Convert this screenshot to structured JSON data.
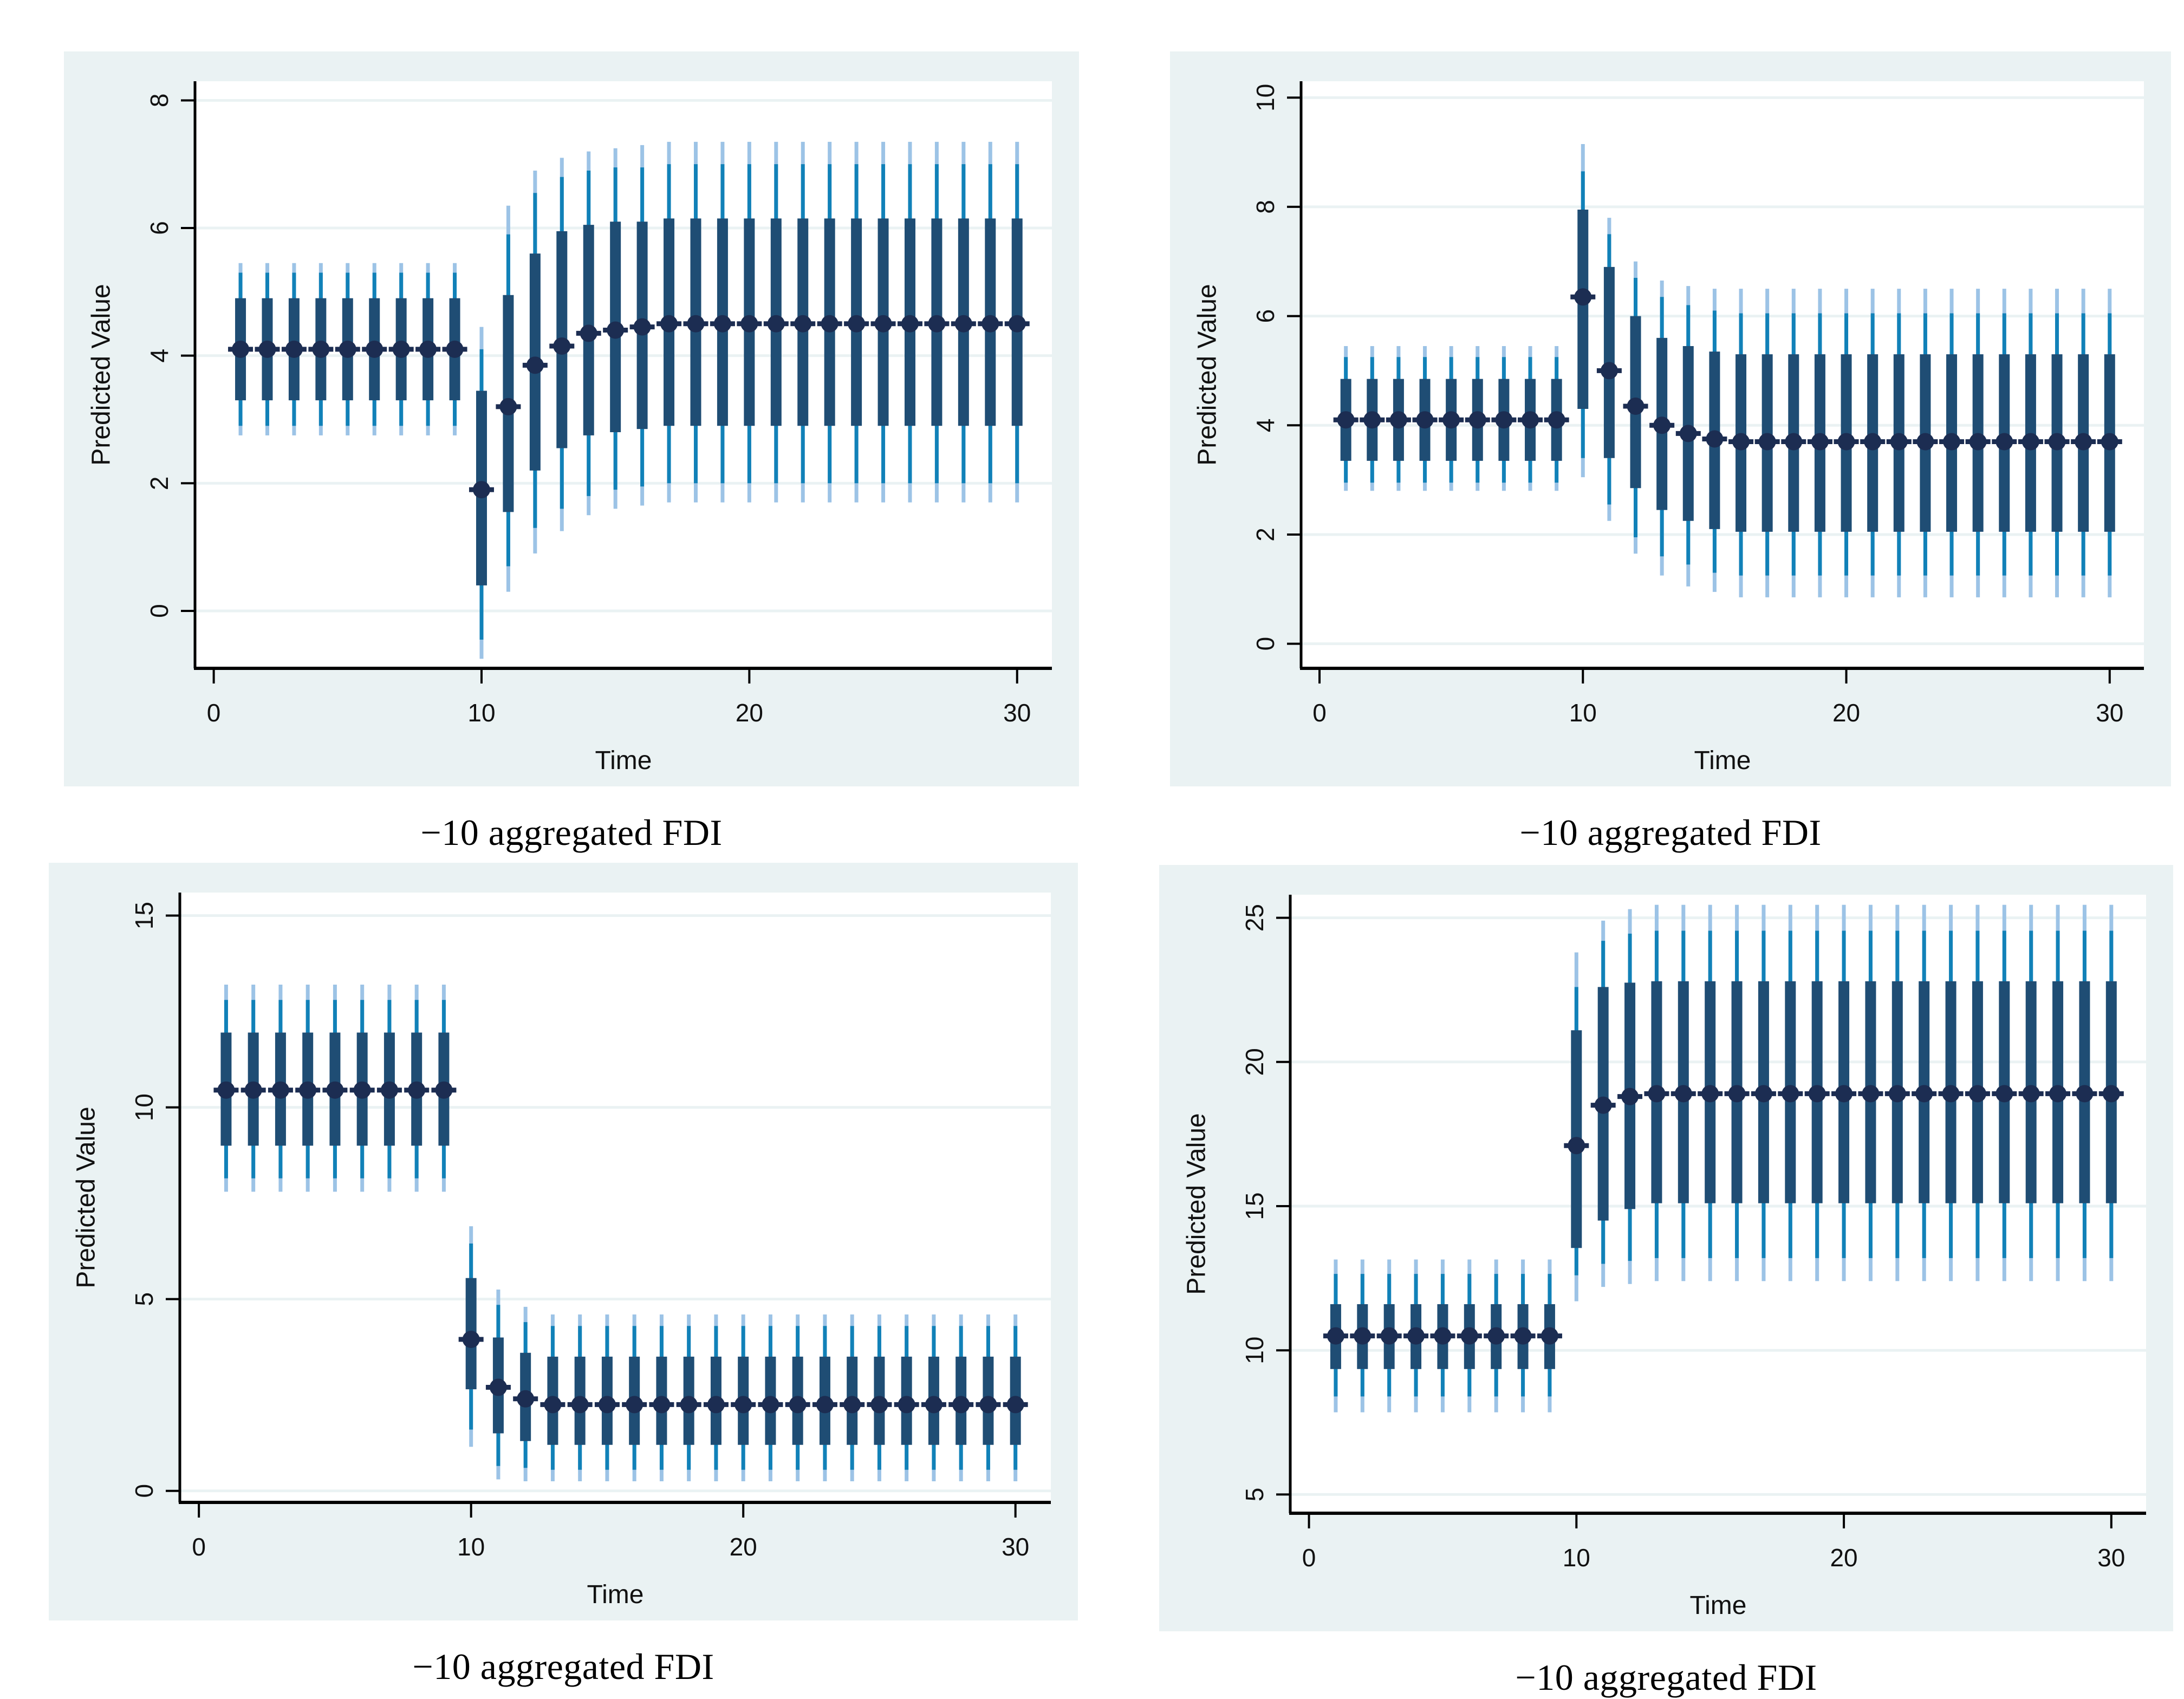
{
  "page": {
    "background": "#ffffff"
  },
  "colors": {
    "panel_background": "#eaf2f3",
    "plot_background": "#ffffff",
    "gridline": "#eaf2f3",
    "axis": "#000000",
    "tick_text": "#111111",
    "outer_ci": "#9cc3e6",
    "mid_ci": "#1181b8",
    "inner_ci": "#1f4d74",
    "point_marker": "#1c2d52",
    "caption_text": "#000000"
  },
  "chart_data": [
    {
      "id": "top-left",
      "type": "scatter",
      "subtype": "point-estimates-with-3-nested-confidence-intervals",
      "caption": "−10 aggregated FDI",
      "xlabel": "Time",
      "ylabel": "Predicted Value",
      "xticks": [
        0,
        10,
        20,
        30
      ],
      "yticks": [
        0,
        2,
        4,
        6,
        8
      ],
      "xlim": [
        -0.7,
        31.3
      ],
      "ylim": [
        -0.9,
        8.3
      ],
      "grid": "horizontal",
      "legend": "none",
      "x": [
        1,
        2,
        3,
        4,
        5,
        6,
        7,
        8,
        9,
        10,
        11,
        12,
        13,
        14,
        15,
        16,
        17,
        18,
        19,
        20,
        21,
        22,
        23,
        24,
        25,
        26,
        27,
        28,
        29,
        30
      ],
      "point": [
        4.1,
        4.1,
        4.1,
        4.1,
        4.1,
        4.1,
        4.1,
        4.1,
        4.1,
        1.9,
        3.2,
        3.85,
        4.15,
        4.35,
        4.4,
        4.45,
        4.5,
        4.5,
        4.5,
        4.5,
        4.5,
        4.5,
        4.5,
        4.5,
        4.5,
        4.5,
        4.5,
        4.5,
        4.5,
        4.5
      ],
      "inner_lo": [
        3.3,
        3.3,
        3.3,
        3.3,
        3.3,
        3.3,
        3.3,
        3.3,
        3.3,
        0.4,
        1.55,
        2.2,
        2.55,
        2.75,
        2.8,
        2.85,
        2.9,
        2.9,
        2.9,
        2.9,
        2.9,
        2.9,
        2.9,
        2.9,
        2.9,
        2.9,
        2.9,
        2.9,
        2.9,
        2.9
      ],
      "inner_hi": [
        4.9,
        4.9,
        4.9,
        4.9,
        4.9,
        4.9,
        4.9,
        4.9,
        4.9,
        3.45,
        4.95,
        5.6,
        5.95,
        6.05,
        6.1,
        6.1,
        6.15,
        6.15,
        6.15,
        6.15,
        6.15,
        6.15,
        6.15,
        6.15,
        6.15,
        6.15,
        6.15,
        6.15,
        6.15,
        6.15
      ],
      "mid_lo": [
        2.9,
        2.9,
        2.9,
        2.9,
        2.9,
        2.9,
        2.9,
        2.9,
        2.9,
        -0.45,
        0.7,
        1.3,
        1.6,
        1.8,
        1.9,
        1.95,
        2.0,
        2.0,
        2.0,
        2.0,
        2.0,
        2.0,
        2.0,
        2.0,
        2.0,
        2.0,
        2.0,
        2.0,
        2.0,
        2.0
      ],
      "mid_hi": [
        5.3,
        5.3,
        5.3,
        5.3,
        5.3,
        5.3,
        5.3,
        5.3,
        5.3,
        4.1,
        5.9,
        6.55,
        6.8,
        6.9,
        6.95,
        6.95,
        7.0,
        7.0,
        7.0,
        7.0,
        7.0,
        7.0,
        7.0,
        7.0,
        7.0,
        7.0,
        7.0,
        7.0,
        7.0,
        7.0
      ],
      "outer_lo": [
        2.75,
        2.75,
        2.75,
        2.75,
        2.75,
        2.75,
        2.75,
        2.75,
        2.75,
        -0.75,
        0.3,
        0.9,
        1.25,
        1.5,
        1.6,
        1.65,
        1.7,
        1.7,
        1.7,
        1.7,
        1.7,
        1.7,
        1.7,
        1.7,
        1.7,
        1.7,
        1.7,
        1.7,
        1.7,
        1.7
      ],
      "outer_hi": [
        5.45,
        5.45,
        5.45,
        5.45,
        5.45,
        5.45,
        5.45,
        5.45,
        5.45,
        4.45,
        6.35,
        6.9,
        7.1,
        7.2,
        7.25,
        7.3,
        7.35,
        7.35,
        7.35,
        7.35,
        7.35,
        7.35,
        7.35,
        7.35,
        7.35,
        7.35,
        7.35,
        7.35,
        7.35,
        7.35
      ]
    },
    {
      "id": "top-right",
      "type": "scatter",
      "subtype": "point-estimates-with-3-nested-confidence-intervals",
      "caption": "−10 aggregated FDI",
      "xlabel": "Time",
      "ylabel": "Predicted Value",
      "xticks": [
        0,
        10,
        20,
        30
      ],
      "yticks": [
        0,
        2,
        4,
        6,
        8,
        10
      ],
      "xlim": [
        -0.7,
        31.3
      ],
      "ylim": [
        -0.45,
        10.3
      ],
      "grid": "horizontal",
      "legend": "none",
      "x": [
        1,
        2,
        3,
        4,
        5,
        6,
        7,
        8,
        9,
        10,
        11,
        12,
        13,
        14,
        15,
        16,
        17,
        18,
        19,
        20,
        21,
        22,
        23,
        24,
        25,
        26,
        27,
        28,
        29,
        30
      ],
      "point": [
        4.1,
        4.1,
        4.1,
        4.1,
        4.1,
        4.1,
        4.1,
        4.1,
        4.1,
        6.35,
        5.0,
        4.35,
        4.0,
        3.85,
        3.75,
        3.7,
        3.7,
        3.7,
        3.7,
        3.7,
        3.7,
        3.7,
        3.7,
        3.7,
        3.7,
        3.7,
        3.7,
        3.7,
        3.7,
        3.7
      ],
      "inner_lo": [
        3.35,
        3.35,
        3.35,
        3.35,
        3.35,
        3.35,
        3.35,
        3.35,
        3.35,
        4.3,
        3.4,
        2.85,
        2.45,
        2.25,
        2.1,
        2.05,
        2.05,
        2.05,
        2.05,
        2.05,
        2.05,
        2.05,
        2.05,
        2.05,
        2.05,
        2.05,
        2.05,
        2.05,
        2.05,
        2.05
      ],
      "inner_hi": [
        4.85,
        4.85,
        4.85,
        4.85,
        4.85,
        4.85,
        4.85,
        4.85,
        4.85,
        7.95,
        6.9,
        6.0,
        5.6,
        5.45,
        5.35,
        5.3,
        5.3,
        5.3,
        5.3,
        5.3,
        5.3,
        5.3,
        5.3,
        5.3,
        5.3,
        5.3,
        5.3,
        5.3,
        5.3,
        5.3
      ],
      "mid_lo": [
        2.95,
        2.95,
        2.95,
        2.95,
        2.95,
        2.95,
        2.95,
        2.95,
        2.95,
        3.4,
        2.55,
        1.95,
        1.6,
        1.45,
        1.3,
        1.25,
        1.25,
        1.25,
        1.25,
        1.25,
        1.25,
        1.25,
        1.25,
        1.25,
        1.25,
        1.25,
        1.25,
        1.25,
        1.25,
        1.25
      ],
      "mid_hi": [
        5.25,
        5.25,
        5.25,
        5.25,
        5.25,
        5.25,
        5.25,
        5.25,
        5.25,
        8.65,
        7.5,
        6.7,
        6.35,
        6.2,
        6.1,
        6.05,
        6.05,
        6.05,
        6.05,
        6.05,
        6.05,
        6.05,
        6.05,
        6.05,
        6.05,
        6.05,
        6.05,
        6.05,
        6.05,
        6.05
      ],
      "outer_lo": [
        2.8,
        2.8,
        2.8,
        2.8,
        2.8,
        2.8,
        2.8,
        2.8,
        2.8,
        3.05,
        2.25,
        1.65,
        1.25,
        1.05,
        0.95,
        0.85,
        0.85,
        0.85,
        0.85,
        0.85,
        0.85,
        0.85,
        0.85,
        0.85,
        0.85,
        0.85,
        0.85,
        0.85,
        0.85,
        0.85
      ],
      "outer_hi": [
        5.45,
        5.45,
        5.45,
        5.45,
        5.45,
        5.45,
        5.45,
        5.45,
        5.45,
        9.15,
        7.8,
        7.0,
        6.65,
        6.55,
        6.5,
        6.5,
        6.5,
        6.5,
        6.5,
        6.5,
        6.5,
        6.5,
        6.5,
        6.5,
        6.5,
        6.5,
        6.5,
        6.5,
        6.5,
        6.5
      ]
    },
    {
      "id": "bottom-left",
      "type": "scatter",
      "subtype": "point-estimates-with-3-nested-confidence-intervals",
      "caption": "−10 aggregated FDI",
      "xlabel": "Time",
      "ylabel": "Predicted Value",
      "xticks": [
        0,
        10,
        20,
        30
      ],
      "yticks": [
        0,
        5,
        10,
        15
      ],
      "xlim": [
        -0.7,
        31.3
      ],
      "ylim": [
        -0.3,
        15.6
      ],
      "grid": "horizontal",
      "legend": "none",
      "x": [
        1,
        2,
        3,
        4,
        5,
        6,
        7,
        8,
        9,
        10,
        11,
        12,
        13,
        14,
        15,
        16,
        17,
        18,
        19,
        20,
        21,
        22,
        23,
        24,
        25,
        26,
        27,
        28,
        29,
        30
      ],
      "point": [
        10.45,
        10.45,
        10.45,
        10.45,
        10.45,
        10.45,
        10.45,
        10.45,
        10.45,
        3.95,
        2.7,
        2.4,
        2.25,
        2.25,
        2.25,
        2.25,
        2.25,
        2.25,
        2.25,
        2.25,
        2.25,
        2.25,
        2.25,
        2.25,
        2.25,
        2.25,
        2.25,
        2.25,
        2.25,
        2.25
      ],
      "inner_lo": [
        9.0,
        9.0,
        9.0,
        9.0,
        9.0,
        9.0,
        9.0,
        9.0,
        9.0,
        2.65,
        1.5,
        1.3,
        1.2,
        1.2,
        1.2,
        1.2,
        1.2,
        1.2,
        1.2,
        1.2,
        1.2,
        1.2,
        1.2,
        1.2,
        1.2,
        1.2,
        1.2,
        1.2,
        1.2,
        1.2
      ],
      "inner_hi": [
        11.95,
        11.95,
        11.95,
        11.95,
        11.95,
        11.95,
        11.95,
        11.95,
        11.95,
        5.55,
        4.0,
        3.6,
        3.5,
        3.5,
        3.5,
        3.5,
        3.5,
        3.5,
        3.5,
        3.5,
        3.5,
        3.5,
        3.5,
        3.5,
        3.5,
        3.5,
        3.5,
        3.5,
        3.5,
        3.5
      ],
      "mid_lo": [
        8.15,
        8.15,
        8.15,
        8.15,
        8.15,
        8.15,
        8.15,
        8.15,
        8.15,
        1.6,
        0.65,
        0.6,
        0.55,
        0.55,
        0.55,
        0.55,
        0.55,
        0.55,
        0.55,
        0.55,
        0.55,
        0.55,
        0.55,
        0.55,
        0.55,
        0.55,
        0.55,
        0.55,
        0.55,
        0.55
      ],
      "mid_hi": [
        12.8,
        12.8,
        12.8,
        12.8,
        12.8,
        12.8,
        12.8,
        12.8,
        12.8,
        6.45,
        4.85,
        4.4,
        4.3,
        4.3,
        4.3,
        4.3,
        4.3,
        4.3,
        4.3,
        4.3,
        4.3,
        4.3,
        4.3,
        4.3,
        4.3,
        4.3,
        4.3,
        4.3,
        4.3,
        4.3
      ],
      "outer_lo": [
        7.8,
        7.8,
        7.8,
        7.8,
        7.8,
        7.8,
        7.8,
        7.8,
        7.8,
        1.15,
        0.3,
        0.25,
        0.25,
        0.25,
        0.25,
        0.25,
        0.25,
        0.25,
        0.25,
        0.25,
        0.25,
        0.25,
        0.25,
        0.25,
        0.25,
        0.25,
        0.25,
        0.25,
        0.25,
        0.25
      ],
      "outer_hi": [
        13.2,
        13.2,
        13.2,
        13.2,
        13.2,
        13.2,
        13.2,
        13.2,
        13.2,
        6.9,
        5.25,
        4.8,
        4.6,
        4.6,
        4.6,
        4.6,
        4.6,
        4.6,
        4.6,
        4.6,
        4.6,
        4.6,
        4.6,
        4.6,
        4.6,
        4.6,
        4.6,
        4.6,
        4.6,
        4.6
      ]
    },
    {
      "id": "bottom-right",
      "type": "scatter",
      "subtype": "point-estimates-with-3-nested-confidence-intervals",
      "caption": "−10 aggregated FDI",
      "xlabel": "Time",
      "ylabel": "Predicted Value",
      "xticks": [
        0,
        10,
        20,
        30
      ],
      "yticks": [
        5,
        10,
        15,
        20,
        25
      ],
      "xlim": [
        -0.7,
        31.3
      ],
      "ylim": [
        4.35,
        25.8
      ],
      "grid": "horizontal",
      "legend": "none",
      "x": [
        1,
        2,
        3,
        4,
        5,
        6,
        7,
        8,
        9,
        10,
        11,
        12,
        13,
        14,
        15,
        16,
        17,
        18,
        19,
        20,
        21,
        22,
        23,
        24,
        25,
        26,
        27,
        28,
        29,
        30
      ],
      "point": [
        10.5,
        10.5,
        10.5,
        10.5,
        10.5,
        10.5,
        10.5,
        10.5,
        10.5,
        17.1,
        18.5,
        18.8,
        18.9,
        18.9,
        18.9,
        18.9,
        18.9,
        18.9,
        18.9,
        18.9,
        18.9,
        18.9,
        18.9,
        18.9,
        18.9,
        18.9,
        18.9,
        18.9,
        18.9,
        18.9
      ],
      "inner_lo": [
        9.35,
        9.35,
        9.35,
        9.35,
        9.35,
        9.35,
        9.35,
        9.35,
        9.35,
        13.55,
        14.5,
        14.9,
        15.1,
        15.1,
        15.1,
        15.1,
        15.1,
        15.1,
        15.1,
        15.1,
        15.1,
        15.1,
        15.1,
        15.1,
        15.1,
        15.1,
        15.1,
        15.1,
        15.1,
        15.1
      ],
      "inner_hi": [
        11.6,
        11.6,
        11.6,
        11.6,
        11.6,
        11.6,
        11.6,
        11.6,
        11.6,
        21.1,
        22.6,
        22.75,
        22.8,
        22.8,
        22.8,
        22.8,
        22.8,
        22.8,
        22.8,
        22.8,
        22.8,
        22.8,
        22.8,
        22.8,
        22.8,
        22.8,
        22.8,
        22.8,
        22.8,
        22.8
      ],
      "mid_lo": [
        8.4,
        8.4,
        8.4,
        8.4,
        8.4,
        8.4,
        8.4,
        8.4,
        8.4,
        12.6,
        13.0,
        13.1,
        13.2,
        13.2,
        13.2,
        13.2,
        13.2,
        13.2,
        13.2,
        13.2,
        13.2,
        13.2,
        13.2,
        13.2,
        13.2,
        13.2,
        13.2,
        13.2,
        13.2,
        13.2
      ],
      "mid_hi": [
        12.65,
        12.65,
        12.65,
        12.65,
        12.65,
        12.65,
        12.65,
        12.65,
        12.65,
        22.6,
        24.2,
        24.45,
        24.55,
        24.55,
        24.55,
        24.55,
        24.55,
        24.55,
        24.55,
        24.55,
        24.55,
        24.55,
        24.55,
        24.55,
        24.55,
        24.55,
        24.55,
        24.55,
        24.55,
        24.55
      ],
      "outer_lo": [
        7.85,
        7.85,
        7.85,
        7.85,
        7.85,
        7.85,
        7.85,
        7.85,
        7.85,
        11.7,
        12.2,
        12.3,
        12.4,
        12.4,
        12.4,
        12.4,
        12.4,
        12.4,
        12.4,
        12.4,
        12.4,
        12.4,
        12.4,
        12.4,
        12.4,
        12.4,
        12.4,
        12.4,
        12.4,
        12.4
      ],
      "outer_hi": [
        13.15,
        13.15,
        13.15,
        13.15,
        13.15,
        13.15,
        13.15,
        13.15,
        13.15,
        23.8,
        24.9,
        25.3,
        25.45,
        25.45,
        25.45,
        25.45,
        25.45,
        25.45,
        25.45,
        25.45,
        25.45,
        25.45,
        25.45,
        25.45,
        25.45,
        25.45,
        25.45,
        25.45,
        25.45,
        25.45
      ]
    }
  ]
}
